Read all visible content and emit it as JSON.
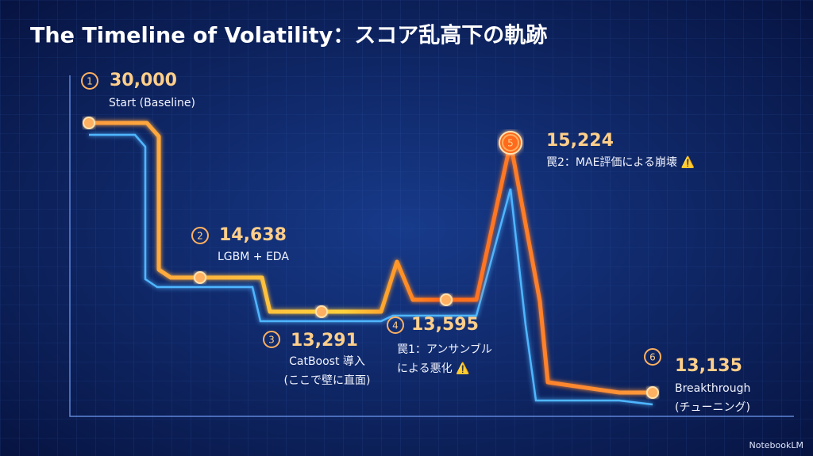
{
  "title": "The Timeline of Volatility：スコア乱高下の軌跡",
  "milestones": [
    {
      "step": "1",
      "score": "30,000",
      "caption": [
        "Start (Baseline)"
      ]
    },
    {
      "step": "2",
      "score": "14,638",
      "caption": [
        "LGBM + EDA"
      ]
    },
    {
      "step": "3",
      "score": "13,291",
      "caption": [
        "CatBoost 導入",
        "(ここで壁に直面)"
      ]
    },
    {
      "step": "4",
      "score": "13,595",
      "caption": [
        "罠1：アンサンブル",
        "による悪化 ⚠️"
      ]
    },
    {
      "step": "5",
      "score": "15,224",
      "caption": [
        "罠2：MAE評価による崩壊 ⚠️"
      ]
    },
    {
      "step": "6",
      "score": "13,135",
      "caption": [
        "Breakthrough",
        "(チューニング)"
      ]
    }
  ],
  "footer": "NotebookLM"
}
